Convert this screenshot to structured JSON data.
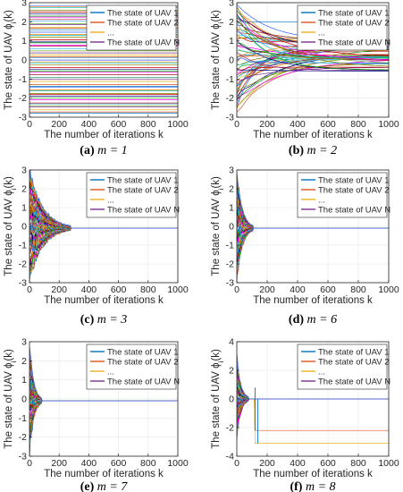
{
  "panels": [
    {
      "id": "a",
      "caption": {
        "letter": "(a)",
        "math": "m = 1"
      }
    },
    {
      "id": "b",
      "caption": {
        "letter": "(b)",
        "math": "m = 2"
      }
    },
    {
      "id": "c",
      "caption": {
        "letter": "(c)",
        "math": "m = 3"
      }
    },
    {
      "id": "d",
      "caption": {
        "letter": "(d)",
        "math": "m = 6"
      }
    },
    {
      "id": "e",
      "caption": {
        "letter": "(e)",
        "math": "m = 7"
      }
    },
    {
      "id": "f",
      "caption": {
        "letter": "(f)",
        "math": "m = 8"
      }
    }
  ],
  "chart_data": [
    {
      "panel": "a",
      "type": "line",
      "xlabel": "The number of iterations k",
      "ylabel": "The state of UAV ϕ_i(k)",
      "xlim": [
        0,
        1000
      ],
      "ylim": [
        -3,
        3
      ],
      "xticks": [
        0,
        200,
        400,
        600,
        800,
        1000
      ],
      "yticks": [
        -3,
        -2,
        -1,
        0,
        1,
        2,
        3
      ],
      "grid": true,
      "legend_position": "top-right",
      "legend": [
        {
          "label": "The state of UAV 1",
          "color": "#0072BD"
        },
        {
          "label": "The state of UAV 2",
          "color": "#D95319"
        },
        {
          "label": "...",
          "color": "#EDB120"
        },
        {
          "label": "The state of UAV N",
          "color": "#7E2F8E"
        }
      ],
      "series_note": "many agents, each constant over k",
      "initial_spread": [
        -2.8,
        2.9
      ],
      "behavior": "constant"
    },
    {
      "panel": "b",
      "type": "line",
      "xlabel": "The number of iterations k",
      "ylabel": "The state of UAV ϕ_i(k)",
      "xlim": [
        0,
        1000
      ],
      "ylim": [
        -3,
        3
      ],
      "xticks": [
        0,
        200,
        400,
        600,
        800,
        1000
      ],
      "yticks": [
        -3,
        -2,
        -1,
        0,
        1,
        2,
        3
      ],
      "grid": true,
      "legend_position": "top-right",
      "legend": [
        {
          "label": "The state of UAV 1",
          "color": "#0072BD"
        },
        {
          "label": "The state of UAV 2",
          "color": "#D95319"
        },
        {
          "label": "...",
          "color": "#EDB120"
        },
        {
          "label": "The state of UAV N",
          "color": "#7E2F8E"
        }
      ],
      "initial_spread": [
        -2.8,
        2.9
      ],
      "behavior": "slow partial convergence",
      "final_band": [
        -0.6,
        1.1
      ],
      "outliers_final": [
        2.0
      ]
    },
    {
      "panel": "c",
      "type": "line",
      "xlabel": "The number of iterations k",
      "ylabel": "The state of UAV ϕ_i(k)",
      "xlim": [
        0,
        1000
      ],
      "ylim": [
        -3,
        3
      ],
      "xticks": [
        0,
        200,
        400,
        600,
        800,
        1000
      ],
      "yticks": [
        -3,
        -2,
        -1,
        0,
        1,
        2,
        3
      ],
      "grid": true,
      "legend_position": "top-right",
      "legend": [
        {
          "label": "The state of UAV 1",
          "color": "#0072BD"
        },
        {
          "label": "The state of UAV 2",
          "color": "#D95319"
        },
        {
          "label": "...",
          "color": "#EDB120"
        },
        {
          "label": "The state of UAV N",
          "color": "#7E2F8E"
        }
      ],
      "initial_spread": [
        -2.8,
        2.9
      ],
      "converge_at_k": 280,
      "consensus_value": -0.1
    },
    {
      "panel": "d",
      "type": "line",
      "xlabel": "The number of iterations k",
      "ylabel": "The state of UAV ϕ_i(k)",
      "xlim": [
        0,
        1000
      ],
      "ylim": [
        -3,
        3
      ],
      "xticks": [
        0,
        200,
        400,
        600,
        800,
        1000
      ],
      "yticks": [
        -3,
        -2,
        -1,
        0,
        1,
        2,
        3
      ],
      "grid": true,
      "legend_position": "top-right",
      "legend": [
        {
          "label": "The state of UAV 1",
          "color": "#0072BD"
        },
        {
          "label": "The state of UAV 2",
          "color": "#D95319"
        },
        {
          "label": "...",
          "color": "#EDB120"
        },
        {
          "label": "The state of UAV N",
          "color": "#7E2F8E"
        }
      ],
      "initial_spread": [
        -2.8,
        2.9
      ],
      "converge_at_k": 110,
      "consensus_value": -0.1
    },
    {
      "panel": "e",
      "type": "line",
      "xlabel": "The number of iterations k",
      "ylabel": "The state of UAV ϕ_i(k)",
      "xlim": [
        0,
        1000
      ],
      "ylim": [
        -3,
        3
      ],
      "xticks": [
        0,
        200,
        400,
        600,
        800,
        1000
      ],
      "yticks": [
        -3,
        -2,
        -1,
        0,
        1,
        2,
        3
      ],
      "grid": true,
      "legend_position": "top-right",
      "legend": [
        {
          "label": "The state of UAV 1",
          "color": "#0072BD"
        },
        {
          "label": "The state of UAV 2",
          "color": "#D95319"
        },
        {
          "label": "...",
          "color": "#EDB120"
        },
        {
          "label": "The state of UAV N",
          "color": "#7E2F8E"
        }
      ],
      "initial_spread": [
        -2.8,
        2.9
      ],
      "converge_at_k": 85,
      "consensus_value": -0.1
    },
    {
      "panel": "f",
      "type": "line",
      "xlabel": "The number of iterations k",
      "ylabel": "The state of UAV ϕ_i(k)",
      "xlim": [
        0,
        1000
      ],
      "ylim": [
        -4,
        4
      ],
      "xticks": [
        0,
        200,
        400,
        600,
        800,
        1000
      ],
      "yticks": [
        -4,
        -2,
        0,
        2,
        4
      ],
      "grid": true,
      "legend_position": "top-right",
      "legend": [
        {
          "label": "The state of UAV 1",
          "color": "#0072BD"
        },
        {
          "label": "The state of UAV 2",
          "color": "#D95319"
        },
        {
          "label": "...",
          "color": "#EDB120"
        },
        {
          "label": "The state of UAV N",
          "color": "#7E2F8E"
        }
      ],
      "initial_spread": [
        -2.8,
        2.9
      ],
      "converge_at_k": 80,
      "consensus_value": 0.0,
      "switch_at_k": 120,
      "final_levels": [
        0.0,
        -2.2,
        -3.1
      ]
    }
  ]
}
